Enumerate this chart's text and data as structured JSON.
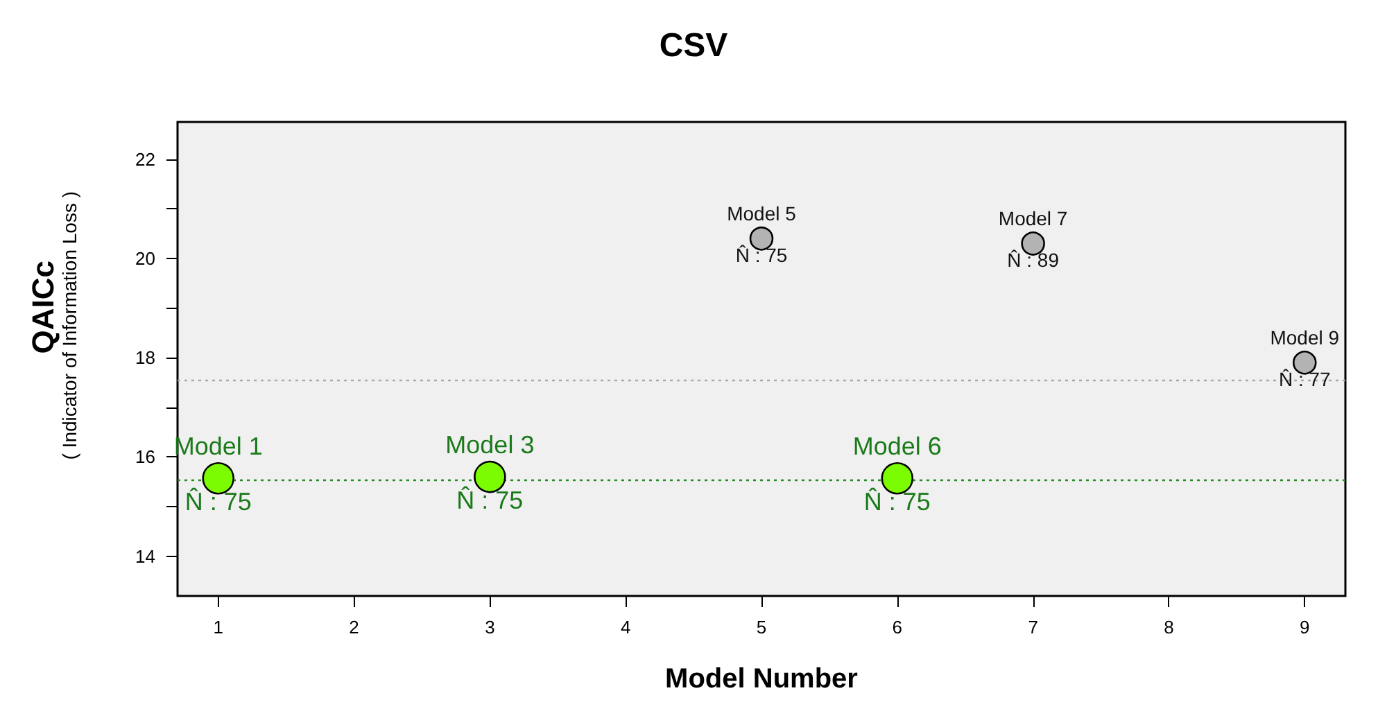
{
  "chart_data": {
    "type": "scatter",
    "title": "CSV",
    "xlabel": "Model Number",
    "ylabel": "QAICc\n( Indicator of Information Loss )",
    "series": [
      {
        "color": "#7cfc00",
        "x": [
          1,
          3,
          6
        ],
        "values": [
          15.57,
          15.6,
          15.57
        ]
      },
      {
        "color": "#b3b3b3",
        "x": [
          5,
          7,
          9
        ],
        "values": [
          20.4,
          20.3,
          17.9
        ]
      }
    ],
    "xlim": [
      0.7,
      9.3
    ],
    "xticks": [
      1,
      2,
      3,
      4,
      5,
      6,
      7,
      8,
      9
    ],
    "ylim": [
      13.2,
      22.75
    ],
    "yticks": [
      14,
      {
        "value": 15,
        "label": null
      },
      16,
      {
        "value": 17,
        "label": null
      },
      18,
      {
        "value": 19,
        "label": null
      },
      20,
      {
        "value": 21,
        "label": null
      },
      22
    ],
    "ref_lines": [
      {
        "axis": "y",
        "value": 15.55,
        "color": "#228b22",
        "line_style": "dotted"
      },
      {
        "axis": "y",
        "value": 17.55,
        "color": "#aaaaaa",
        "line_style": "dotted"
      }
    ],
    "annotations": [
      {
        "text": "Model 1",
        "x": 1,
        "y": 15.57
      },
      {
        "text": "N̂ : 75",
        "x": 1,
        "y": 15.57
      },
      {
        "text": "Model 3",
        "x": 3,
        "y": 15.6
      },
      {
        "text": "N̂ : 75",
        "x": 3,
        "y": 15.6
      },
      {
        "text": "Model 5",
        "x": 5,
        "y": 20.4
      },
      {
        "text": "N̂ : 75",
        "x": 5,
        "y": 20.4
      },
      {
        "text": "Model 6",
        "x": 6,
        "y": 15.57
      },
      {
        "text": "N̂ : 75",
        "x": 6,
        "y": 15.57
      },
      {
        "text": "Model 7",
        "x": 7,
        "y": 20.3
      },
      {
        "text": "N̂ : 89",
        "x": 7,
        "y": 20.3
      },
      {
        "text": "Model 9",
        "x": 9,
        "y": 17.9
      },
      {
        "text": "N̂ : 77",
        "x": 9,
        "y": 17.9
      }
    ],
    "marker": "circle",
    "grid": false
  }
}
